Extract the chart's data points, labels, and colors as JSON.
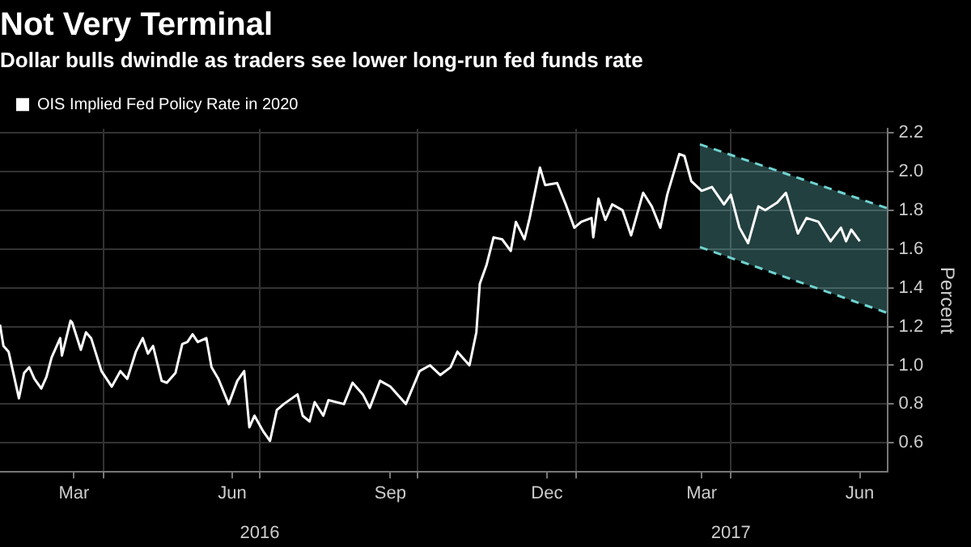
{
  "chart_data": {
    "type": "line",
    "title": "Not Very Terminal",
    "subtitle": "Dollar bulls dwindle as traders see lower long-run fed funds rate",
    "ylabel": "Percent",
    "xlim": [
      "2016-02-01",
      "2017-07-01"
    ],
    "xticks": [
      {
        "value": "2016-03-15",
        "label": "Mar"
      },
      {
        "value": "2016-04-01",
        "label": null
      },
      {
        "value": "2016-06-15",
        "label": "Jun"
      },
      {
        "value": "2016-07-01",
        "label": null
      },
      {
        "value": "2016-09-15",
        "label": "Sep"
      },
      {
        "value": "2016-10-01",
        "label": null
      },
      {
        "value": "2016-12-15",
        "label": "Dec"
      },
      {
        "value": "2017-01-01",
        "label": null
      },
      {
        "value": "2017-03-15",
        "label": "Mar"
      },
      {
        "value": "2017-04-01",
        "label": null
      },
      {
        "value": "2017-06-15",
        "label": "Jun"
      }
    ],
    "x2lim": [
      "2016-02-01",
      "2017-07-01"
    ],
    "x2ticks": [
      {
        "value": "2016-07-01",
        "label": "2016"
      },
      {
        "value": "2017-04-01",
        "label": "2017"
      }
    ],
    "ylim": [
      0.45,
      2.22
    ],
    "yticks": [
      0.6,
      0.8,
      {
        "value": 1,
        "label": "1.0"
      },
      1.2,
      1.4,
      1.6,
      1.8,
      {
        "value": 2,
        "label": "2.0"
      },
      2.2
    ],
    "grid": true,
    "legend": "top left",
    "marker": "none",
    "series": [
      {
        "name": "OIS Implied Fed Policy Rate in 2020",
        "color": "#ffffff",
        "line_style": "solid",
        "x": [
          "2016-02-01",
          "2016-02-03",
          "2016-02-06",
          "2016-02-12",
          "2016-02-15",
          "2016-02-18",
          "2016-02-21",
          "2016-02-25",
          "2016-02-28",
          "2016-03-02",
          "2016-03-07",
          "2016-03-08",
          "2016-03-13",
          "2016-03-14",
          "2016-03-19",
          "2016-03-22",
          "2016-03-25",
          "2016-03-31",
          "2016-04-06",
          "2016-04-11",
          "2016-04-15",
          "2016-04-20",
          "2016-04-24",
          "2016-04-27",
          "2016-04-30",
          "2016-05-05",
          "2016-05-08",
          "2016-05-13",
          "2016-05-17",
          "2016-05-20",
          "2016-05-23",
          "2016-05-26",
          "2016-05-31",
          "2016-06-03",
          "2016-06-07",
          "2016-06-13",
          "2016-06-18",
          "2016-06-22",
          "2016-06-25",
          "2016-06-28",
          "2016-07-03",
          "2016-07-07",
          "2016-07-11",
          "2016-07-15",
          "2016-07-23",
          "2016-07-26",
          "2016-07-30",
          "2016-08-02",
          "2016-08-07",
          "2016-08-10",
          "2016-08-19",
          "2016-08-24",
          "2016-08-30",
          "2016-09-03",
          "2016-09-09",
          "2016-09-15",
          "2016-09-24",
          "2016-10-02",
          "2016-10-08",
          "2016-10-14",
          "2016-10-20",
          "2016-10-24",
          "2016-10-31",
          "2016-11-04",
          "2016-11-06",
          "2016-11-10",
          "2016-11-14",
          "2016-11-19",
          "2016-11-24",
          "2016-11-27",
          "2016-12-02",
          "2016-12-05",
          "2016-12-11",
          "2016-12-14",
          "2016-12-21",
          "2016-12-26",
          "2016-12-31",
          "2017-01-04",
          "2017-01-10",
          "2017-01-11",
          "2017-01-14",
          "2017-01-18",
          "2017-01-22",
          "2017-01-28",
          "2017-02-02",
          "2017-02-09",
          "2017-02-14",
          "2017-02-19",
          "2017-02-23",
          "2017-03-02",
          "2017-03-05",
          "2017-03-09",
          "2017-03-15",
          "2017-03-21",
          "2017-03-28",
          "2017-04-01",
          "2017-04-06",
          "2017-04-11",
          "2017-04-17",
          "2017-04-21",
          "2017-04-28",
          "2017-05-03",
          "2017-05-10",
          "2017-05-15",
          "2017-05-22",
          "2017-05-29",
          "2017-06-04",
          "2017-06-07",
          "2017-06-10",
          "2017-06-15"
        ],
        "values": [
          1.21,
          1.1,
          1.07,
          0.83,
          0.96,
          0.99,
          0.93,
          0.88,
          0.94,
          1.04,
          1.14,
          1.05,
          1.23,
          1.22,
          1.08,
          1.17,
          1.14,
          0.97,
          0.89,
          0.97,
          0.93,
          1.07,
          1.14,
          1.06,
          1.1,
          0.92,
          0.91,
          0.96,
          1.11,
          1.12,
          1.16,
          1.12,
          1.14,
          0.99,
          0.93,
          0.8,
          0.92,
          0.97,
          0.68,
          0.74,
          0.66,
          0.61,
          0.77,
          0.8,
          0.85,
          0.74,
          0.71,
          0.81,
          0.74,
          0.82,
          0.8,
          0.91,
          0.85,
          0.78,
          0.92,
          0.89,
          0.8,
          0.97,
          1.0,
          0.95,
          0.99,
          1.07,
          1.0,
          1.17,
          1.42,
          1.52,
          1.66,
          1.65,
          1.59,
          1.74,
          1.65,
          1.76,
          2.02,
          1.93,
          1.94,
          1.83,
          1.71,
          1.74,
          1.76,
          1.66,
          1.86,
          1.75,
          1.83,
          1.8,
          1.67,
          1.89,
          1.82,
          1.71,
          1.88,
          2.09,
          2.08,
          1.95,
          1.9,
          1.92,
          1.83,
          1.88,
          1.71,
          1.63,
          1.82,
          1.8,
          1.84,
          1.89,
          1.68,
          1.76,
          1.74,
          1.64,
          1.71,
          1.64,
          1.7,
          1.64
        ]
      },
      {
        "type": "line",
        "color": "#6fd3d0",
        "line_style": "dashed",
        "x": [
          "2017-03-14",
          "2017-07-01"
        ],
        "values": [
          2.14,
          1.81
        ],
        "lower": [
          1.61,
          1.27
        ],
        "upper": [
          2.14,
          1.81
        ]
      },
      {
        "type": "line",
        "color": "#6fd3d0",
        "line_style": "dashed",
        "x": [
          "2017-03-14",
          "2017-07-01"
        ],
        "values": [
          1.61,
          1.27
        ]
      }
    ]
  }
}
